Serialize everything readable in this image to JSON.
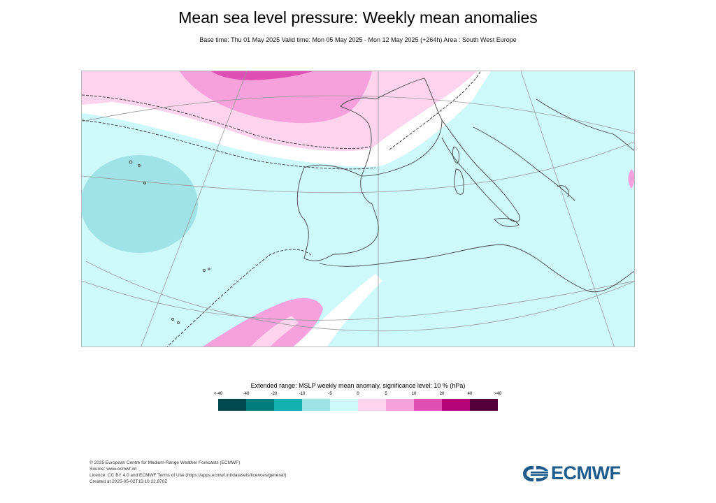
{
  "header": {
    "title": "Mean sea level pressure: Weekly mean anomalies",
    "subtitle": "Base time: Thu 01 May 2025 Valid time: Mon 05 May 2025 - Mon 12 May 2025 (+264h) Area : South West Europe"
  },
  "legend": {
    "title": "Extended range: MSLP weekly mean anomaly, significance level: 10 % (hPa)",
    "ticks": [
      "<-40",
      "-40",
      "-20",
      "-10",
      "-5",
      "0",
      "5",
      "10",
      "20",
      "40",
      ">40"
    ],
    "colors": [
      "#004a4f",
      "#007c7c",
      "#12b0b0",
      "#9fe3e6",
      "#cdf9fb",
      "#fdd3ee",
      "#f7a1dc",
      "#e04fb4",
      "#b5037a",
      "#54003a"
    ]
  },
  "map": {
    "region": "South West Europe",
    "colors": {
      "ocean_negative": "#cdf9fb",
      "strong_negative": "#9fe3e6",
      "weak_positive": "#fdd3ee",
      "positive": "#f7a1dc",
      "strong_positive": "#e04fb4",
      "coastline": "#444444",
      "graticule": "#999999"
    }
  },
  "footer": {
    "line1": "© 2025 European Centre for Medium-Range Weather Forecasts (ECMWF)",
    "line2": "Source: www.ecmwf.int",
    "line3": "Licence: CC BY 4.0 and ECMWF Terms of Use (https://apps.ecmwf.int/datasets/licences/general/)",
    "line4": "Created at 2025-05-02T15:10:22.870Z"
  },
  "logo": {
    "text": "ECMWF",
    "icon": "ecmwf-logo-icon",
    "color": "#1f5b8c"
  }
}
